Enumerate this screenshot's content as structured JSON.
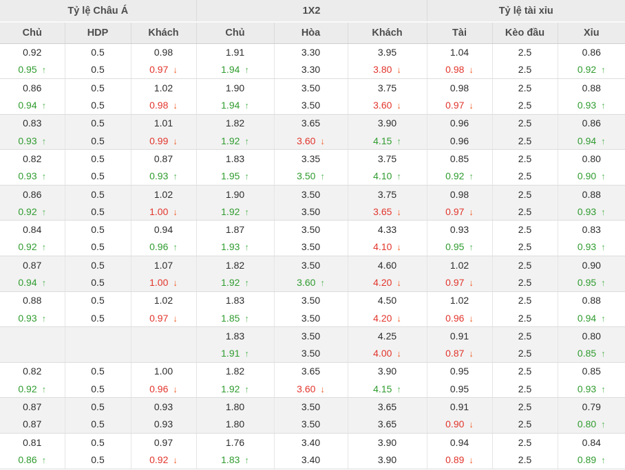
{
  "header": {
    "groups": [
      {
        "label": "Tỷ lệ Châu Á"
      },
      {
        "label": "1X2"
      },
      {
        "label": "Tỷ lệ tài xỉu"
      }
    ],
    "columns": [
      "Chủ",
      "HDP",
      "Khách",
      "Chủ",
      "Hòa",
      "Khách",
      "Tài",
      "Kèo đầu",
      "Xỉu"
    ]
  },
  "icons": {
    "up_arrow": "↑",
    "down_arrow": "↓"
  },
  "colors": {
    "up_text": "#2e9b2e",
    "up_arrow": "#5cb85c",
    "down_text": "#e2342b",
    "down_arrow": "#f15a22",
    "header_bg": "#ececec",
    "shaded_row": "#f2f2f2"
  },
  "odds": {
    "pairs": [
      {
        "shaded": false,
        "rows": [
          [
            "0.92",
            "0.5",
            "0.98",
            "1.91",
            "3.30",
            "3.95",
            "1.04",
            "2.5",
            "0.86"
          ],
          [
            {
              "v": "0.95",
              "dir": "up"
            },
            "0.5",
            {
              "v": "0.97",
              "dir": "down"
            },
            {
              "v": "1.94",
              "dir": "up"
            },
            "3.30",
            {
              "v": "3.80",
              "dir": "down"
            },
            {
              "v": "0.98",
              "dir": "down"
            },
            "2.5",
            {
              "v": "0.92",
              "dir": "up"
            }
          ]
        ]
      },
      {
        "shaded": false,
        "rows": [
          [
            "0.86",
            "0.5",
            "1.02",
            "1.90",
            "3.50",
            "3.75",
            "0.98",
            "2.5",
            "0.88"
          ],
          [
            {
              "v": "0.94",
              "dir": "up"
            },
            "0.5",
            {
              "v": "0.98",
              "dir": "down"
            },
            {
              "v": "1.94",
              "dir": "up"
            },
            "3.50",
            {
              "v": "3.60",
              "dir": "down"
            },
            {
              "v": "0.97",
              "dir": "down"
            },
            "2.5",
            {
              "v": "0.93",
              "dir": "up"
            }
          ]
        ]
      },
      {
        "shaded": true,
        "rows": [
          [
            "0.83",
            "0.5",
            "1.01",
            "1.82",
            "3.65",
            "3.90",
            "0.96",
            "2.5",
            "0.86"
          ],
          [
            {
              "v": "0.93",
              "dir": "up"
            },
            "0.5",
            {
              "v": "0.99",
              "dir": "down"
            },
            {
              "v": "1.92",
              "dir": "up"
            },
            {
              "v": "3.60",
              "dir": "down"
            },
            {
              "v": "4.15",
              "dir": "up"
            },
            "0.96",
            "2.5",
            {
              "v": "0.94",
              "dir": "up"
            }
          ]
        ]
      },
      {
        "shaded": false,
        "rows": [
          [
            "0.82",
            "0.5",
            "0.87",
            "1.83",
            "3.35",
            "3.75",
            "0.85",
            "2.5",
            "0.80"
          ],
          [
            {
              "v": "0.93",
              "dir": "up"
            },
            "0.5",
            {
              "v": "0.93",
              "dir": "up"
            },
            {
              "v": "1.95",
              "dir": "up"
            },
            {
              "v": "3.50",
              "dir": "up"
            },
            {
              "v": "4.10",
              "dir": "up"
            },
            {
              "v": "0.92",
              "dir": "up"
            },
            "2.5",
            {
              "v": "0.90",
              "dir": "up"
            }
          ]
        ]
      },
      {
        "shaded": true,
        "rows": [
          [
            "0.86",
            "0.5",
            "1.02",
            "1.90",
            "3.50",
            "3.75",
            "0.98",
            "2.5",
            "0.88"
          ],
          [
            {
              "v": "0.92",
              "dir": "up"
            },
            "0.5",
            {
              "v": "1.00",
              "dir": "down"
            },
            {
              "v": "1.92",
              "dir": "up"
            },
            "3.50",
            {
              "v": "3.65",
              "dir": "down"
            },
            {
              "v": "0.97",
              "dir": "down"
            },
            "2.5",
            {
              "v": "0.93",
              "dir": "up"
            }
          ]
        ]
      },
      {
        "shaded": false,
        "rows": [
          [
            "0.84",
            "0.5",
            "0.94",
            "1.87",
            "3.50",
            "4.33",
            "0.93",
            "2.5",
            "0.83"
          ],
          [
            {
              "v": "0.92",
              "dir": "up"
            },
            "0.5",
            {
              "v": "0.96",
              "dir": "up"
            },
            {
              "v": "1.93",
              "dir": "up"
            },
            "3.50",
            {
              "v": "4.10",
              "dir": "down"
            },
            {
              "v": "0.95",
              "dir": "up"
            },
            "2.5",
            {
              "v": "0.93",
              "dir": "up"
            }
          ]
        ]
      },
      {
        "shaded": true,
        "rows": [
          [
            "0.87",
            "0.5",
            "1.07",
            "1.82",
            "3.50",
            "4.60",
            "1.02",
            "2.5",
            "0.90"
          ],
          [
            {
              "v": "0.94",
              "dir": "up"
            },
            "0.5",
            {
              "v": "1.00",
              "dir": "down"
            },
            {
              "v": "1.92",
              "dir": "up"
            },
            {
              "v": "3.60",
              "dir": "up"
            },
            {
              "v": "4.20",
              "dir": "down"
            },
            {
              "v": "0.97",
              "dir": "down"
            },
            "2.5",
            {
              "v": "0.95",
              "dir": "up"
            }
          ]
        ]
      },
      {
        "shaded": false,
        "rows": [
          [
            "0.88",
            "0.5",
            "1.02",
            "1.83",
            "3.50",
            "4.50",
            "1.02",
            "2.5",
            "0.88"
          ],
          [
            {
              "v": "0.93",
              "dir": "up"
            },
            "0.5",
            {
              "v": "0.97",
              "dir": "down"
            },
            {
              "v": "1.85",
              "dir": "up"
            },
            "3.50",
            {
              "v": "4.20",
              "dir": "down"
            },
            {
              "v": "0.96",
              "dir": "down"
            },
            "2.5",
            {
              "v": "0.94",
              "dir": "up"
            }
          ]
        ]
      },
      {
        "shaded": true,
        "rows": [
          [
            null,
            null,
            null,
            "1.83",
            "3.50",
            "4.25",
            "0.91",
            "2.5",
            "0.80"
          ],
          [
            null,
            null,
            null,
            {
              "v": "1.91",
              "dir": "up"
            },
            "3.50",
            {
              "v": "4.00",
              "dir": "down"
            },
            {
              "v": "0.87",
              "dir": "down"
            },
            "2.5",
            {
              "v": "0.85",
              "dir": "up"
            }
          ]
        ]
      },
      {
        "shaded": false,
        "rows": [
          [
            "0.82",
            "0.5",
            "1.00",
            "1.82",
            "3.65",
            "3.90",
            "0.95",
            "2.5",
            "0.85"
          ],
          [
            {
              "v": "0.92",
              "dir": "up"
            },
            "0.5",
            {
              "v": "0.96",
              "dir": "down"
            },
            {
              "v": "1.92",
              "dir": "up"
            },
            {
              "v": "3.60",
              "dir": "down"
            },
            {
              "v": "4.15",
              "dir": "up"
            },
            "0.95",
            "2.5",
            {
              "v": "0.93",
              "dir": "up"
            }
          ]
        ]
      },
      {
        "shaded": true,
        "rows": [
          [
            "0.87",
            "0.5",
            "0.93",
            "1.80",
            "3.50",
            "3.65",
            "0.91",
            "2.5",
            "0.79"
          ],
          [
            "0.87",
            "0.5",
            "0.93",
            "1.80",
            "3.50",
            "3.65",
            {
              "v": "0.90",
              "dir": "down"
            },
            "2.5",
            {
              "v": "0.80",
              "dir": "up"
            }
          ]
        ]
      },
      {
        "shaded": false,
        "rows": [
          [
            "0.81",
            "0.5",
            "0.97",
            "1.76",
            "3.40",
            "3.90",
            "0.94",
            "2.5",
            "0.84"
          ],
          [
            {
              "v": "0.86",
              "dir": "up"
            },
            "0.5",
            {
              "v": "0.92",
              "dir": "down"
            },
            {
              "v": "1.83",
              "dir": "up"
            },
            "3.40",
            "3.90",
            {
              "v": "0.89",
              "dir": "down"
            },
            "2.5",
            {
              "v": "0.89",
              "dir": "up"
            }
          ]
        ]
      }
    ]
  }
}
